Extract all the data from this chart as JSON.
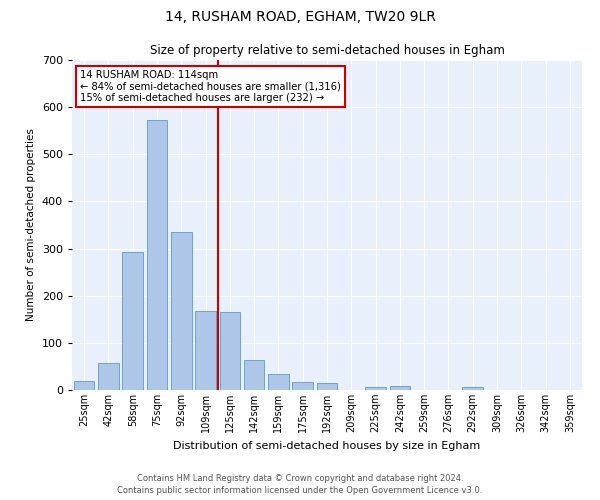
{
  "title1": "14, RUSHAM ROAD, EGHAM, TW20 9LR",
  "title2": "Size of property relative to semi-detached houses in Egham",
  "xlabel": "Distribution of semi-detached houses by size in Egham",
  "ylabel": "Number of semi-detached properties",
  "footer1": "Contains HM Land Registry data © Crown copyright and database right 2024.",
  "footer2": "Contains public sector information licensed under the Open Government Licence v3.0.",
  "annotation_line1": "14 RUSHAM ROAD: 114sqm",
  "annotation_line2": "← 84% of semi-detached houses are smaller (1,316)",
  "annotation_line3": "15% of semi-detached houses are larger (232) →",
  "property_size": 114,
  "bar_categories": [
    "25sqm",
    "42sqm",
    "58sqm",
    "75sqm",
    "92sqm",
    "109sqm",
    "125sqm",
    "142sqm",
    "159sqm",
    "175sqm",
    "192sqm",
    "209sqm",
    "225sqm",
    "242sqm",
    "259sqm",
    "276sqm",
    "292sqm",
    "309sqm",
    "326sqm",
    "342sqm",
    "359sqm"
  ],
  "bar_values": [
    20,
    57,
    293,
    572,
    335,
    168,
    165,
    63,
    35,
    17,
    14,
    0,
    7,
    8,
    0,
    0,
    7,
    0,
    0,
    0,
    0
  ],
  "bar_color": "#aec6e8",
  "bar_edge_color": "#5b9bd5",
  "property_line_color": "#cc0000",
  "annotation_box_color": "#ffffff",
  "annotation_box_edge": "#cc0000",
  "background_color": "#e8f0fb",
  "ylim": [
    0,
    700
  ],
  "yticks": [
    0,
    100,
    200,
    300,
    400,
    500,
    600,
    700
  ],
  "fig_width": 6.0,
  "fig_height": 5.0,
  "dpi": 100
}
